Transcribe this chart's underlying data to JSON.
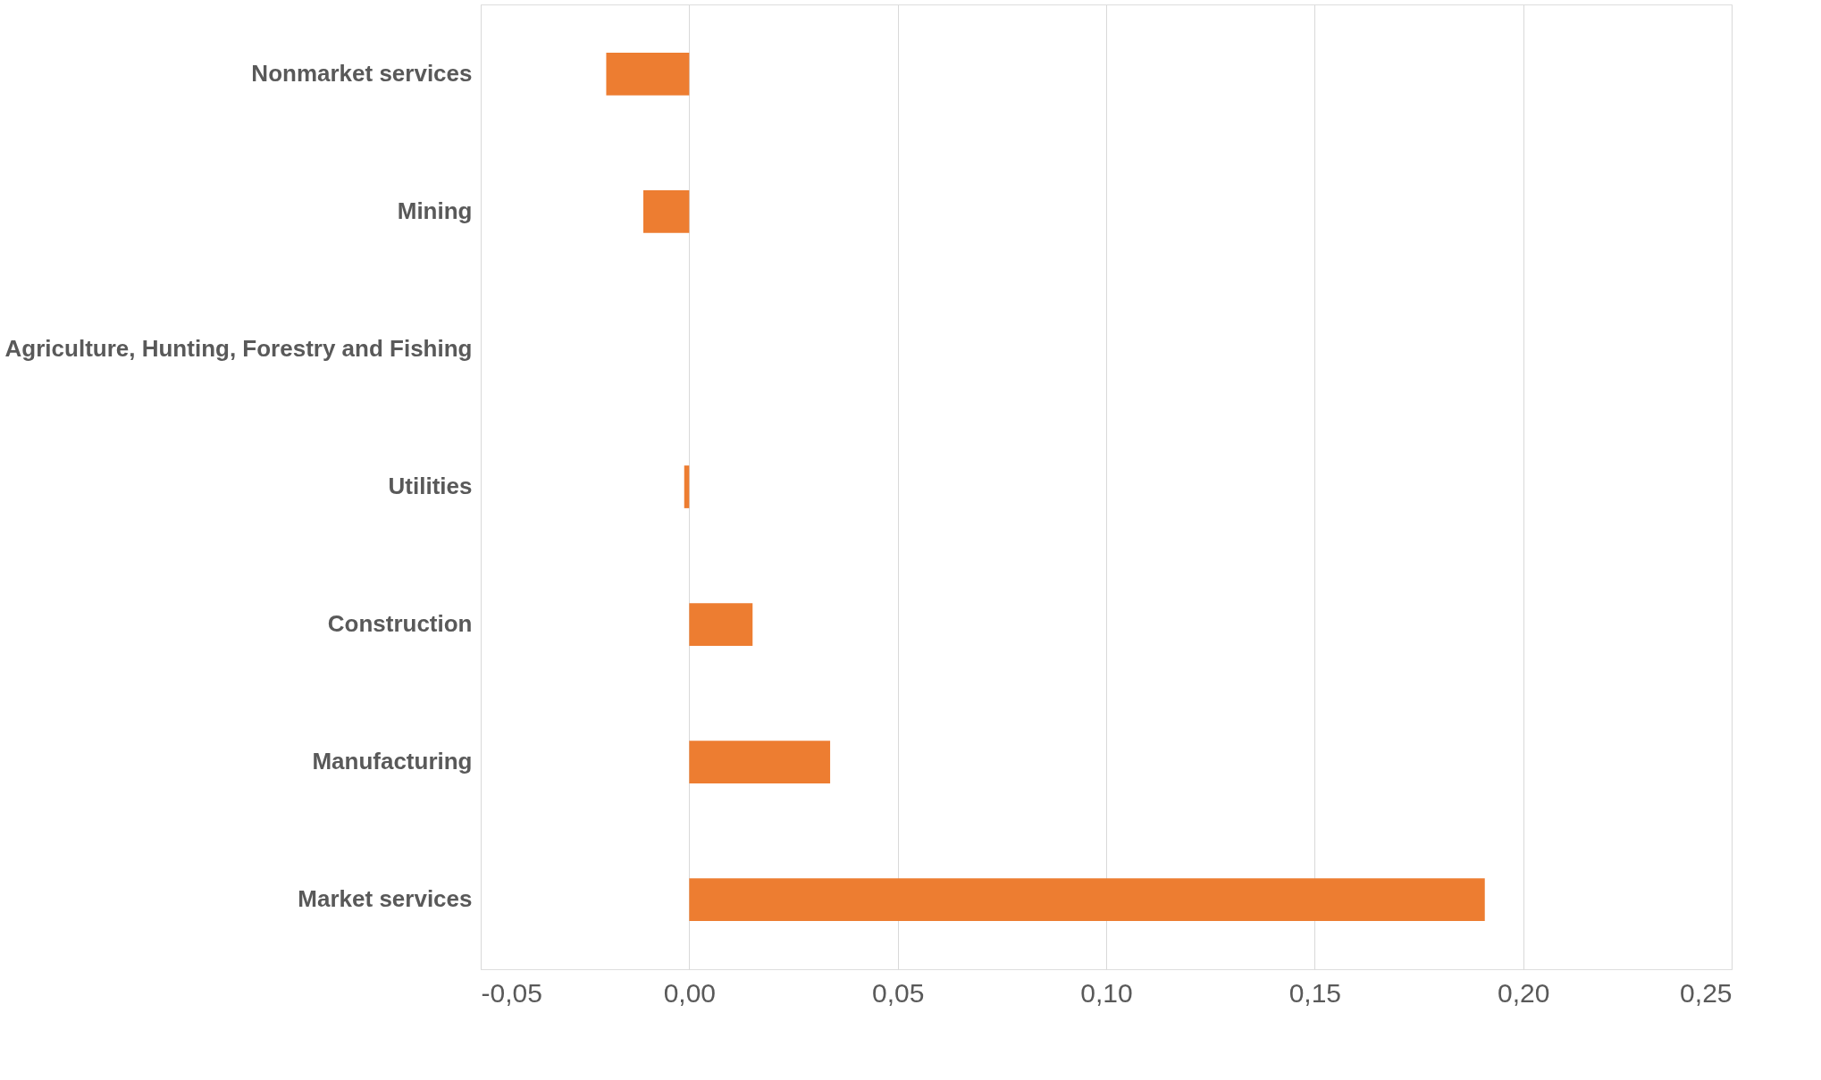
{
  "chart_data": {
    "type": "bar",
    "orientation": "horizontal",
    "categories": [
      "Nonmarket services",
      "Mining",
      "Agriculture, Hunting, Forestry and Fishing",
      "Utilities",
      "Construction",
      "Manufacturing",
      "Market services"
    ],
    "values": [
      -0.0199,
      -0.011,
      0.0,
      -0.0012,
      0.0152,
      0.0338,
      0.1908
    ],
    "color": "#ed7d31",
    "xlim": [
      -0.05,
      0.25
    ],
    "xticks": [
      {
        "value": -0.05,
        "label": "-0,05"
      },
      {
        "value": 0,
        "label": "0,00"
      },
      {
        "value": 0.05,
        "label": "0,05"
      },
      {
        "value": 0.1,
        "label": "0,10"
      },
      {
        "value": 0.15,
        "label": "0,15"
      },
      {
        "value": 0.2,
        "label": "0,20"
      },
      {
        "value": 0.25,
        "label": "0,25"
      }
    ],
    "grid": "x"
  }
}
